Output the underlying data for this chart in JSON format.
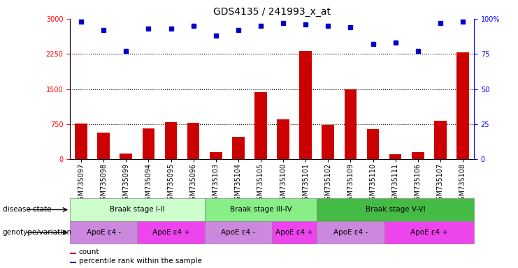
{
  "title": "GDS4135 / 241993_x_at",
  "samples": [
    "GSM735097",
    "GSM735098",
    "GSM735099",
    "GSM735094",
    "GSM735095",
    "GSM735096",
    "GSM735103",
    "GSM735104",
    "GSM735105",
    "GSM735100",
    "GSM735101",
    "GSM735102",
    "GSM735109",
    "GSM735110",
    "GSM735111",
    "GSM735106",
    "GSM735107",
    "GSM735108"
  ],
  "counts": [
    770,
    580,
    130,
    660,
    800,
    780,
    160,
    480,
    1440,
    850,
    2310,
    740,
    1490,
    640,
    110,
    155,
    820,
    2280
  ],
  "percentiles": [
    98,
    92,
    77,
    93,
    93,
    95,
    88,
    92,
    95,
    97,
    96,
    95,
    94,
    82,
    83,
    77,
    97,
    98
  ],
  "ylim_left": [
    0,
    3000
  ],
  "ylim_right": [
    0,
    100
  ],
  "yticks_left": [
    0,
    750,
    1500,
    2250,
    3000
  ],
  "yticks_right": [
    0,
    25,
    50,
    75,
    100
  ],
  "bar_color": "#cc0000",
  "dot_color": "#0000cc",
  "disease_state_groups": [
    {
      "label": "Braak stage I-II",
      "start": 0,
      "end": 6,
      "color": "#ccffcc"
    },
    {
      "label": "Braak stage III-IV",
      "start": 6,
      "end": 11,
      "color": "#88ee88"
    },
    {
      "label": "Braak stage V-VI",
      "start": 11,
      "end": 18,
      "color": "#44bb44"
    }
  ],
  "genotype_groups": [
    {
      "label": "ApoE ε4 -",
      "start": 0,
      "end": 3,
      "color": "#cc88dd"
    },
    {
      "label": "ApoE ε4 +",
      "start": 3,
      "end": 6,
      "color": "#ee44ee"
    },
    {
      "label": "ApoE ε4 -",
      "start": 6,
      "end": 9,
      "color": "#cc88dd"
    },
    {
      "label": "ApoE ε4 +",
      "start": 9,
      "end": 11,
      "color": "#ee44ee"
    },
    {
      "label": "ApoE ε4 -",
      "start": 11,
      "end": 14,
      "color": "#cc88dd"
    },
    {
      "label": "ApoE ε4 +",
      "start": 14,
      "end": 18,
      "color": "#ee44ee"
    }
  ],
  "disease_state_label": "disease state",
  "genotype_label": "genotype/variation",
  "legend_count_label": "count",
  "legend_pct_label": "percentile rank within the sample",
  "background_color": "#ffffff",
  "title_fontsize": 10,
  "tick_fontsize": 7,
  "annot_fontsize": 7.5
}
